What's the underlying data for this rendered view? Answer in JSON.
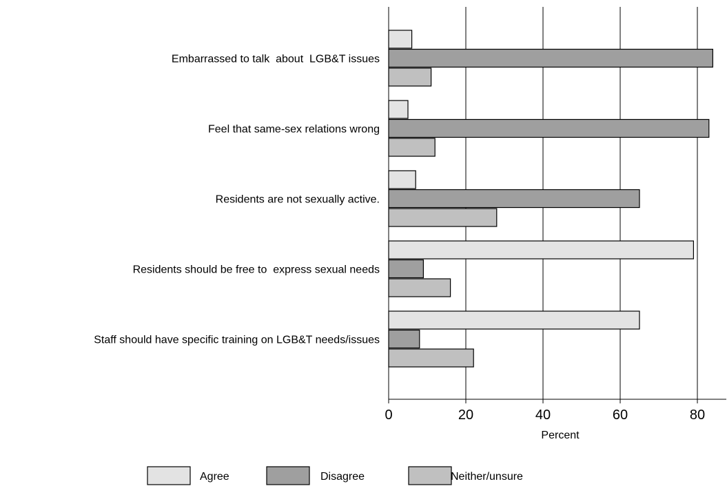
{
  "chart_data": {
    "type": "bar",
    "orientation": "horizontal",
    "categories": [
      "Embarrassed to talk  about  LGB&T issues",
      "Feel that same-sex relations wrong",
      "Residents are not sexually active.",
      "Residents should be free to  express sexual needs",
      "Staff should have specific training on LGB&T needs/issues"
    ],
    "series": [
      {
        "name": "Agree",
        "values": [
          6,
          5,
          7,
          79,
          65
        ],
        "color": "#e3e3e3"
      },
      {
        "name": "Disagree",
        "values": [
          84,
          83,
          65,
          9,
          8
        ],
        "color": "#9f9f9f"
      },
      {
        "name": "Neither/unsure",
        "values": [
          11,
          12,
          28,
          16,
          22
        ],
        "color": "#c0c0c0"
      }
    ],
    "xlabel": "Percent",
    "ylabel": "",
    "xlim": [
      0,
      87
    ],
    "xticks": [
      "0",
      "20",
      "40",
      "60",
      "80"
    ],
    "grid": "vertical",
    "legend": "bottom"
  }
}
